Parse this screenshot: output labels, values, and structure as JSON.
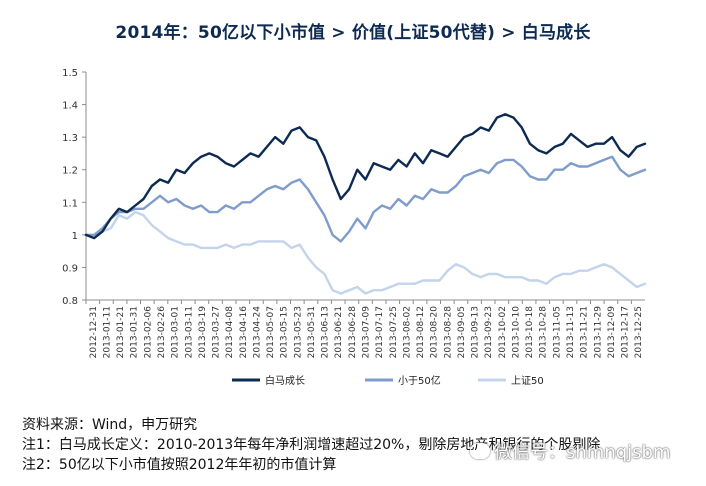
{
  "title": "2014年：50亿以下小市值 > 价值(上证50代替) > 白马成长",
  "chart_data": {
    "type": "line",
    "ylim": [
      0.8,
      1.5
    ],
    "yticks": [
      "1.5",
      "1.4",
      "1.3",
      "1.2",
      "1.1",
      "1",
      "0.9",
      "0.8"
    ],
    "xticks": [
      "2012-12-31",
      "2013-01-11",
      "2013-01-21",
      "2013-01-31",
      "2013-02-06",
      "2013-02-26",
      "2013-03-01",
      "2013-03-11",
      "2013-03-19",
      "2013-03-27",
      "2013-04-08",
      "2013-04-16",
      "2013-04-24",
      "2013-05-07",
      "2013-05-15",
      "2013-05-23",
      "2013-05-31",
      "2013-06-13",
      "2013-06-21",
      "2013-06-28",
      "2013-07-09",
      "2013-07-17",
      "2013-07-25",
      "2013-08-02",
      "2013-08-12",
      "2013-08-20",
      "2013-08-28",
      "2013-09-05",
      "2013-09-13",
      "2013-09-23",
      "2013-10-02",
      "2013-10-10",
      "2013-10-18",
      "2013-10-28",
      "2013-11-05",
      "2013-11-13",
      "2013-11-21",
      "2013-11-29",
      "2013-12-09",
      "2013-12-17",
      "2013-12-25"
    ],
    "legend_position": "bottom",
    "series": [
      {
        "name": "白马成长",
        "color": "#0d2a52",
        "values": [
          1.0,
          0.99,
          1.01,
          1.05,
          1.08,
          1.07,
          1.09,
          1.11,
          1.15,
          1.17,
          1.16,
          1.2,
          1.19,
          1.22,
          1.24,
          1.25,
          1.24,
          1.22,
          1.21,
          1.23,
          1.25,
          1.24,
          1.27,
          1.3,
          1.28,
          1.32,
          1.33,
          1.3,
          1.29,
          1.24,
          1.17,
          1.11,
          1.14,
          1.2,
          1.17,
          1.22,
          1.21,
          1.2,
          1.23,
          1.21,
          1.25,
          1.22,
          1.26,
          1.25,
          1.24,
          1.27,
          1.3,
          1.31,
          1.33,
          1.32,
          1.36,
          1.37,
          1.36,
          1.33,
          1.28,
          1.26,
          1.25,
          1.27,
          1.28,
          1.31,
          1.29,
          1.27,
          1.28,
          1.28,
          1.3,
          1.26,
          1.24,
          1.27,
          1.28
        ]
      },
      {
        "name": "小于50亿",
        "color": "#7f9ccb",
        "values": [
          1.0,
          1.0,
          1.02,
          1.05,
          1.07,
          1.07,
          1.08,
          1.08,
          1.1,
          1.12,
          1.1,
          1.11,
          1.09,
          1.08,
          1.09,
          1.07,
          1.07,
          1.09,
          1.08,
          1.1,
          1.1,
          1.12,
          1.14,
          1.15,
          1.14,
          1.16,
          1.17,
          1.14,
          1.1,
          1.06,
          1.0,
          0.98,
          1.01,
          1.05,
          1.02,
          1.07,
          1.09,
          1.08,
          1.11,
          1.09,
          1.12,
          1.11,
          1.14,
          1.13,
          1.13,
          1.15,
          1.18,
          1.19,
          1.2,
          1.19,
          1.22,
          1.23,
          1.23,
          1.21,
          1.18,
          1.17,
          1.17,
          1.2,
          1.2,
          1.22,
          1.21,
          1.21,
          1.22,
          1.23,
          1.24,
          1.2,
          1.18,
          1.19,
          1.2
        ]
      },
      {
        "name": "上证50",
        "color": "#c3d4ec",
        "values": [
          1.0,
          1.0,
          1.01,
          1.02,
          1.06,
          1.05,
          1.07,
          1.06,
          1.03,
          1.01,
          0.99,
          0.98,
          0.97,
          0.97,
          0.96,
          0.96,
          0.96,
          0.97,
          0.96,
          0.97,
          0.97,
          0.98,
          0.98,
          0.98,
          0.98,
          0.96,
          0.97,
          0.93,
          0.9,
          0.88,
          0.83,
          0.82,
          0.83,
          0.84,
          0.82,
          0.83,
          0.83,
          0.84,
          0.85,
          0.85,
          0.85,
          0.86,
          0.86,
          0.86,
          0.89,
          0.91,
          0.9,
          0.88,
          0.87,
          0.88,
          0.88,
          0.87,
          0.87,
          0.87,
          0.86,
          0.86,
          0.85,
          0.87,
          0.88,
          0.88,
          0.89,
          0.89,
          0.9,
          0.91,
          0.9,
          0.88,
          0.86,
          0.84,
          0.85
        ]
      }
    ]
  },
  "notes": {
    "source": "资料来源：Wind，申万研究",
    "note1": "注1：白马成长定义：2010-2013年每年净利润增速超过20%，剔除房地产和银行的个股剔除",
    "note2": "注2：50亿以下小市值按照2012年年初的市值计算"
  },
  "watermark": {
    "text": "微信号：shmnqjsbm",
    "icon": "wechat-icon"
  }
}
